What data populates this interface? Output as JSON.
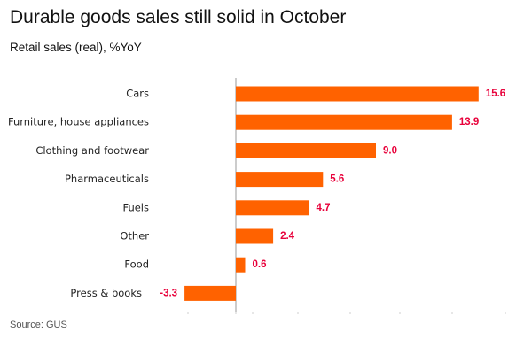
{
  "header": {
    "title": "Durable goods sales still solid in October",
    "subtitle": "Retail sales (real), %YoY"
  },
  "footer": {
    "source": "Source: GUS"
  },
  "colors": {
    "bar": "#ff6200",
    "value_label": "#e8003a",
    "axis": "#9a9a9a",
    "axis_ticks": "#cfcfcf"
  },
  "chart_data": {
    "type": "bar",
    "orientation": "horizontal",
    "categories": [
      "Cars",
      "Furniture, house appliances",
      "Clothing and footwear",
      "Pharmaceuticals",
      "Fuels",
      "Other",
      "Food",
      "Press & books"
    ],
    "values": [
      15.6,
      13.9,
      9.0,
      5.6,
      4.7,
      2.4,
      0.6,
      -3.3
    ],
    "value_labels": [
      "15.6",
      "13.9",
      "9.0",
      "5.6",
      "4.7",
      "2.4",
      "0.6",
      "-3.3"
    ],
    "title": "Durable goods sales still solid in October",
    "subtitle": "Retail sales (real), %YoY",
    "xlabel": "",
    "ylabel": "",
    "xlim": [
      -3.3,
      18.0
    ],
    "grid": false,
    "legend": "none"
  }
}
